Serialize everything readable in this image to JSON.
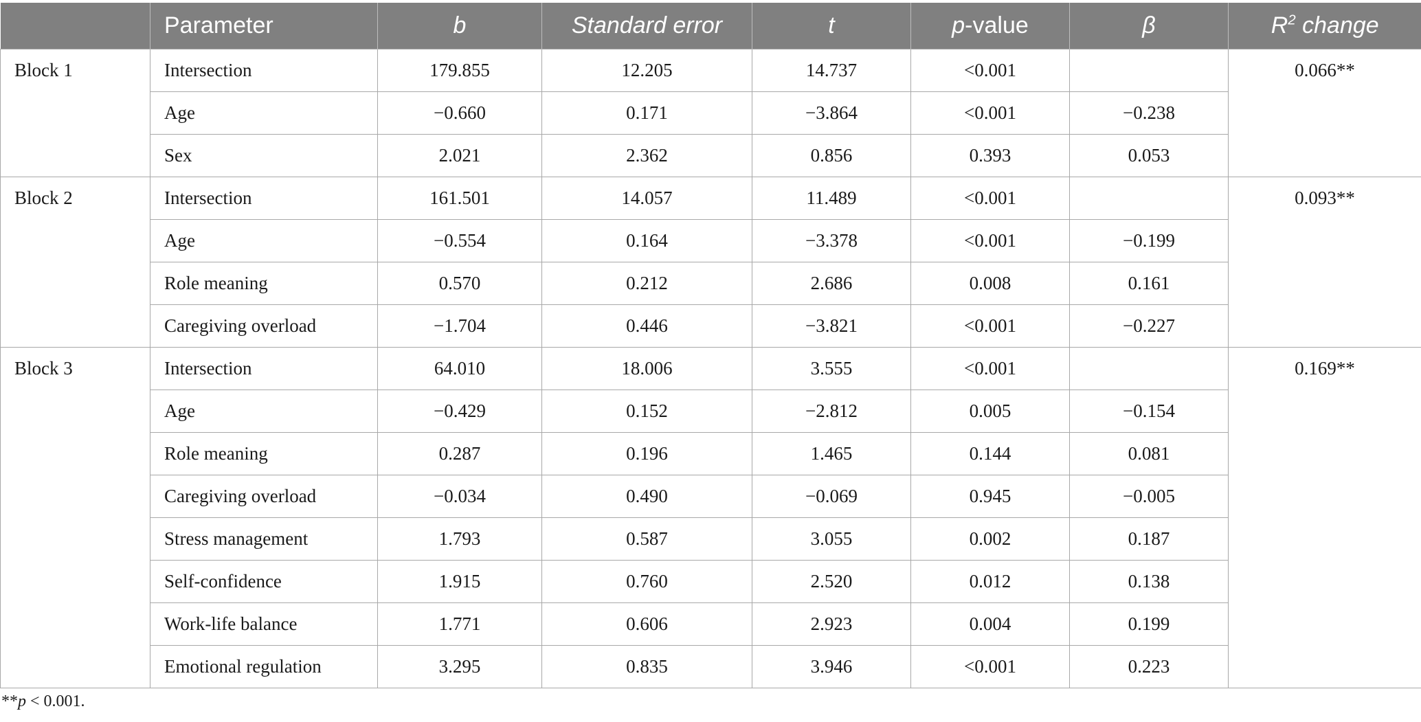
{
  "header": {
    "parameter": "Parameter",
    "b": "b",
    "se": "Standard error",
    "t": "t",
    "p_italic": "p",
    "p_rest": "-value",
    "beta": "β",
    "r2_base": "R",
    "r2_sup": "2",
    "r2_rest": " change"
  },
  "blocks": [
    {
      "label": "Block 1",
      "r2_change": "0.066**",
      "rows": [
        {
          "param": "Intersection",
          "b": "179.855",
          "se": "12.205",
          "t": "14.737",
          "p": "<0.001",
          "beta": ""
        },
        {
          "param": "Age",
          "b": "−0.660",
          "se": "0.171",
          "t": "−3.864",
          "p": "<0.001",
          "beta": "−0.238"
        },
        {
          "param": "Sex",
          "b": "2.021",
          "se": "2.362",
          "t": "0.856",
          "p": "0.393",
          "beta": "0.053"
        }
      ]
    },
    {
      "label": "Block 2",
      "r2_change": "0.093**",
      "rows": [
        {
          "param": "Intersection",
          "b": "161.501",
          "se": "14.057",
          "t": "11.489",
          "p": "<0.001",
          "beta": ""
        },
        {
          "param": "Age",
          "b": "−0.554",
          "se": "0.164",
          "t": "−3.378",
          "p": "<0.001",
          "beta": "−0.199"
        },
        {
          "param": "Role meaning",
          "b": "0.570",
          "se": "0.212",
          "t": "2.686",
          "p": "0.008",
          "beta": "0.161"
        },
        {
          "param": "Caregiving overload",
          "b": "−1.704",
          "se": "0.446",
          "t": "−3.821",
          "p": "<0.001",
          "beta": "−0.227"
        }
      ]
    },
    {
      "label": "Block 3",
      "r2_change": "0.169**",
      "rows": [
        {
          "param": "Intersection",
          "b": "64.010",
          "se": "18.006",
          "t": "3.555",
          "p": "<0.001",
          "beta": ""
        },
        {
          "param": "Age",
          "b": "−0.429",
          "se": "0.152",
          "t": "−2.812",
          "p": "0.005",
          "beta": "−0.154"
        },
        {
          "param": "Role meaning",
          "b": "0.287",
          "se": "0.196",
          "t": "1.465",
          "p": "0.144",
          "beta": "0.081"
        },
        {
          "param": "Caregiving overload",
          "b": "−0.034",
          "se": "0.490",
          "t": "−0.069",
          "p": "0.945",
          "beta": "−0.005"
        },
        {
          "param": "Stress management",
          "b": "1.793",
          "se": "0.587",
          "t": "3.055",
          "p": "0.002",
          "beta": "0.187"
        },
        {
          "param": "Self-confidence",
          "b": "1.915",
          "se": "0.760",
          "t": "2.520",
          "p": "0.012",
          "beta": "0.138"
        },
        {
          "param": "Work-life balance",
          "b": "1.771",
          "se": "0.606",
          "t": "2.923",
          "p": "0.004",
          "beta": "0.199"
        },
        {
          "param": "Emotional regulation",
          "b": "3.295",
          "se": "0.835",
          "t": "3.946",
          "p": "<0.001",
          "beta": "0.223"
        }
      ]
    }
  ],
  "footnote": {
    "stars": "**",
    "p": "p",
    "rest": " < 0.001."
  }
}
